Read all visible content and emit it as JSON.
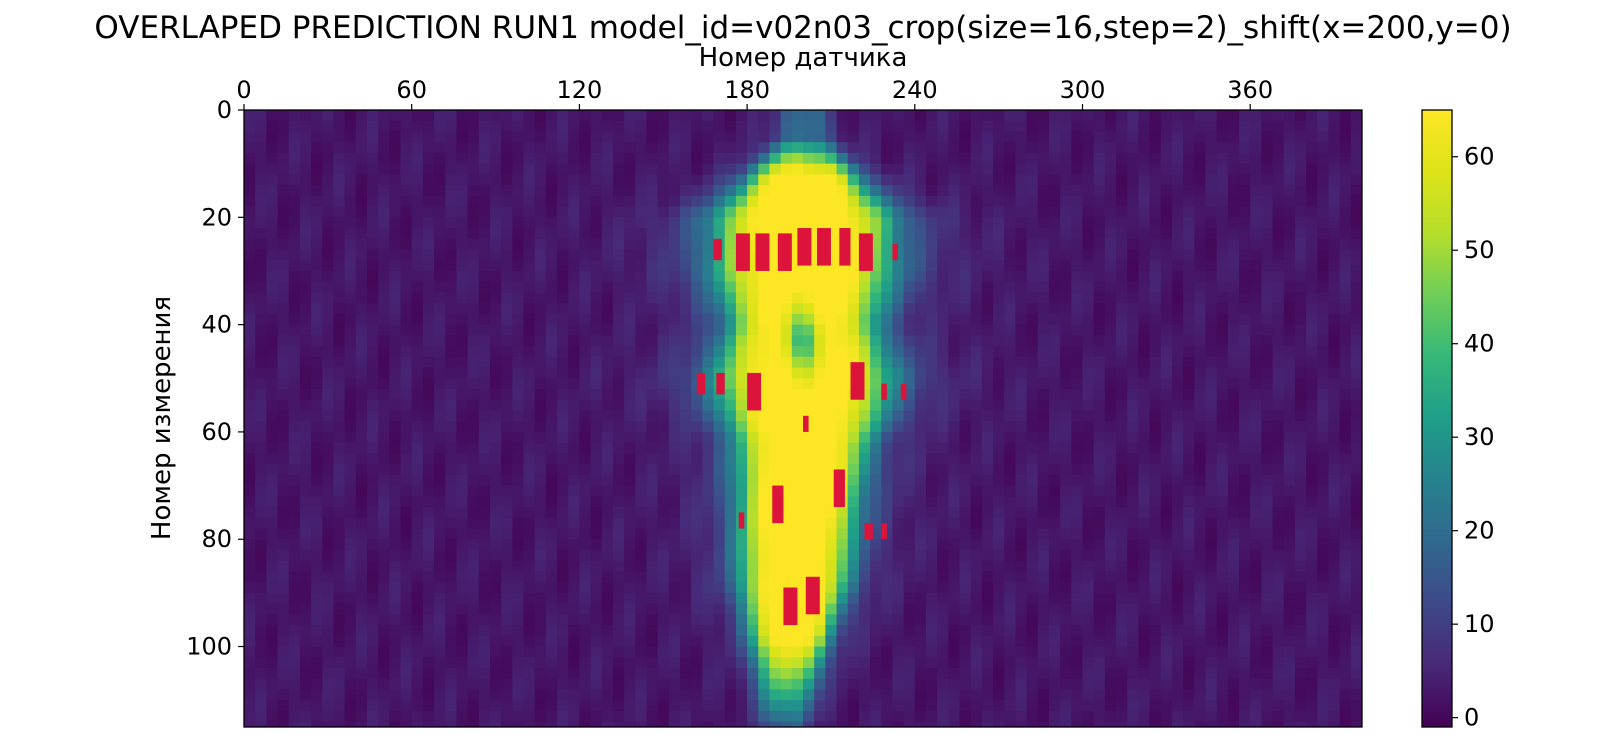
{
  "chart_data": {
    "type": "heatmap",
    "title": "OVERLAPED PREDICTION RUN1 model_id=v02n03_crop(size=16,step=2)_shift(x=200,y=0)",
    "xlabel": "Номер датчика",
    "ylabel": "Номер измерения",
    "x_axis_position": "top",
    "xlim": [
      0,
      400
    ],
    "ylim": [
      115,
      0
    ],
    "x_ticks": [
      0,
      60,
      120,
      180,
      240,
      300,
      360
    ],
    "y_ticks": [
      0,
      20,
      40,
      60,
      80,
      100
    ],
    "colormap": "viridis",
    "colorbar": {
      "range": [
        -1,
        65
      ],
      "ticks": [
        0,
        10,
        20,
        30,
        40,
        50,
        60
      ]
    },
    "overlay_color": "#dc143c",
    "overlay_rects": [
      {
        "x0": 168,
        "x1": 171,
        "y0": 24,
        "y1": 28
      },
      {
        "x0": 176,
        "x1": 181,
        "y0": 23,
        "y1": 30
      },
      {
        "x0": 183,
        "x1": 188,
        "y0": 23,
        "y1": 30
      },
      {
        "x0": 191,
        "x1": 196,
        "y0": 23,
        "y1": 30
      },
      {
        "x0": 198,
        "x1": 203,
        "y0": 22,
        "y1": 29
      },
      {
        "x0": 205,
        "x1": 210,
        "y0": 22,
        "y1": 29
      },
      {
        "x0": 213,
        "x1": 217,
        "y0": 22,
        "y1": 29
      },
      {
        "x0": 220,
        "x1": 225,
        "y0": 23,
        "y1": 30
      },
      {
        "x0": 232,
        "x1": 234,
        "y0": 25,
        "y1": 28
      },
      {
        "x0": 162,
        "x1": 165,
        "y0": 49,
        "y1": 53
      },
      {
        "x0": 169,
        "x1": 172,
        "y0": 49,
        "y1": 53
      },
      {
        "x0": 180,
        "x1": 185,
        "y0": 49,
        "y1": 56
      },
      {
        "x0": 217,
        "x1": 222,
        "y0": 47,
        "y1": 54
      },
      {
        "x0": 228,
        "x1": 230,
        "y0": 51,
        "y1": 54
      },
      {
        "x0": 235,
        "x1": 237,
        "y0": 51,
        "y1": 54
      },
      {
        "x0": 200,
        "x1": 202,
        "y0": 57,
        "y1": 60
      },
      {
        "x0": 211,
        "x1": 215,
        "y0": 67,
        "y1": 74
      },
      {
        "x0": 189,
        "x1": 193,
        "y0": 70,
        "y1": 77
      },
      {
        "x0": 177,
        "x1": 179,
        "y0": 75,
        "y1": 78
      },
      {
        "x0": 222,
        "x1": 225,
        "y0": 77,
        "y1": 80
      },
      {
        "x0": 228,
        "x1": 230,
        "y0": 77,
        "y1": 80
      },
      {
        "x0": 193,
        "x1": 198,
        "y0": 89,
        "y1": 96
      },
      {
        "x0": 201,
        "x1": 206,
        "y0": 87,
        "y1": 94
      }
    ]
  }
}
